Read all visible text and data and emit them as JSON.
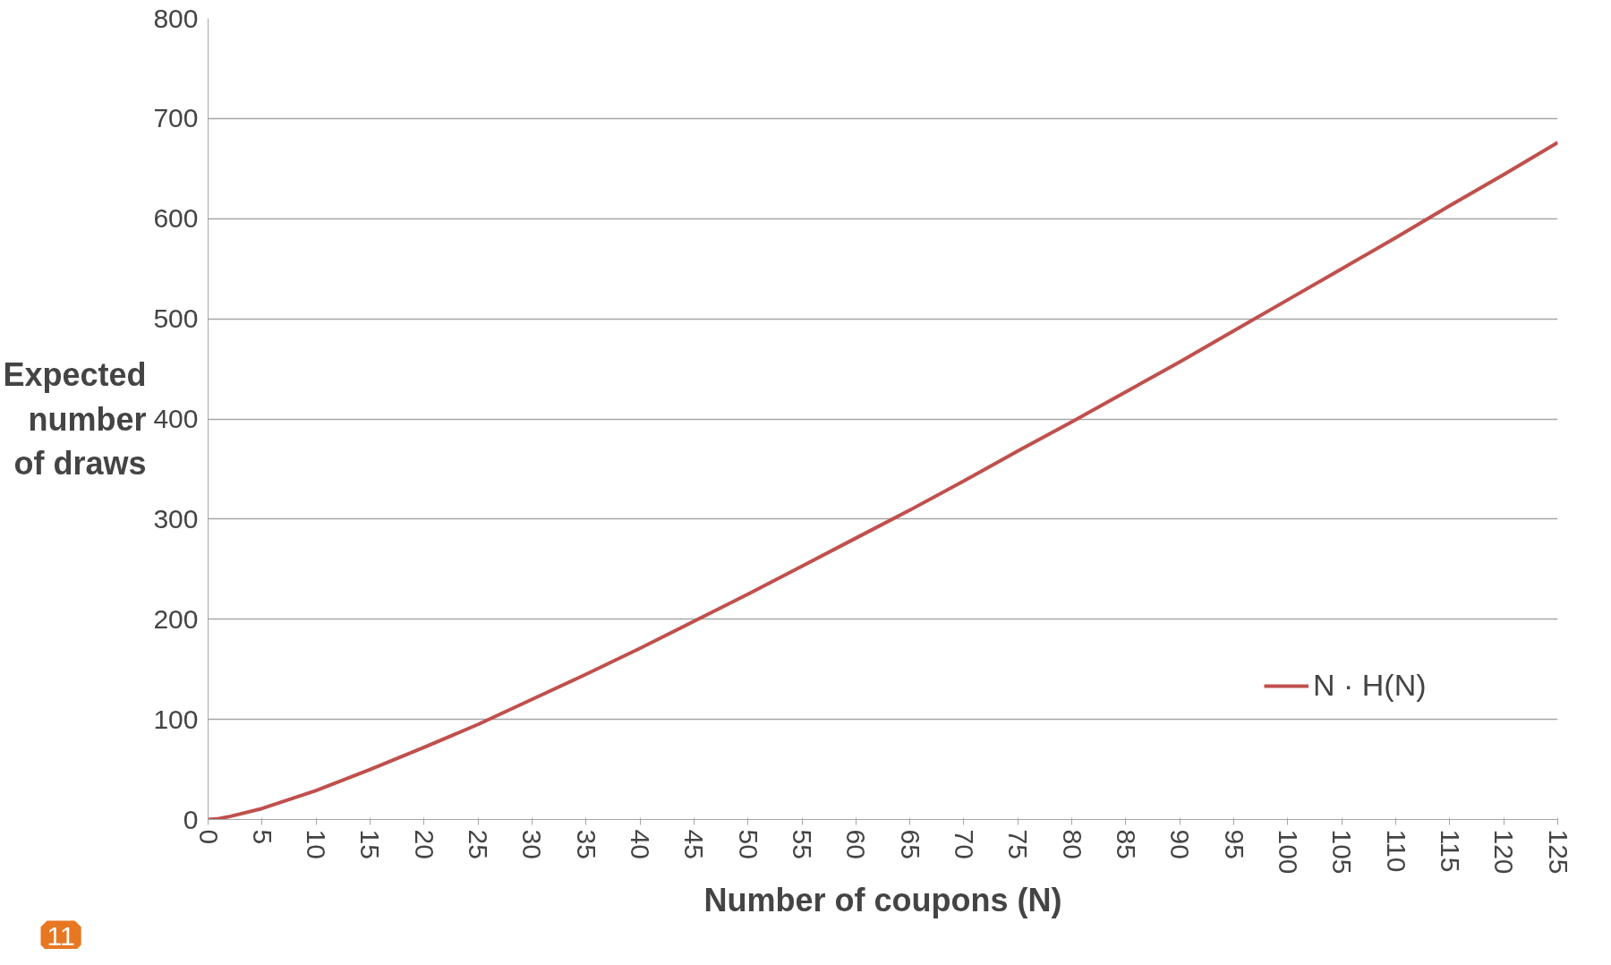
{
  "chart_data": {
    "type": "line",
    "xlabel": "Number of coupons (N)",
    "ylabel": "Expected number of draws",
    "x": [
      0,
      1,
      2,
      5,
      10,
      15,
      20,
      25,
      30,
      35,
      40,
      45,
      50,
      55,
      60,
      65,
      70,
      75,
      80,
      85,
      90,
      95,
      100,
      105,
      110,
      115,
      120,
      125
    ],
    "series": [
      {
        "name": "N · H(N)",
        "color": "#c0504d",
        "values": [
          0,
          1,
          3,
          11,
          29,
          50,
          72,
          95,
          120,
          145,
          171,
          198,
          225,
          253,
          281,
          309,
          338,
          368,
          397,
          427,
          457,
          488,
          519,
          550,
          581,
          613,
          644,
          676
        ]
      }
    ],
    "xlim": [
      0,
      125
    ],
    "xticks": [
      0,
      5,
      10,
      15,
      20,
      25,
      30,
      35,
      40,
      45,
      50,
      55,
      60,
      65,
      70,
      75,
      80,
      85,
      90,
      95,
      100,
      105,
      110,
      115,
      120,
      125
    ],
    "ylim": [
      0,
      800
    ],
    "yticks": [
      0,
      100,
      200,
      300,
      400,
      500,
      600,
      700,
      800
    ],
    "grid": "y",
    "legend": "right",
    "marker": "none",
    "line_style": "solid",
    "annotations": [
      "11"
    ]
  }
}
